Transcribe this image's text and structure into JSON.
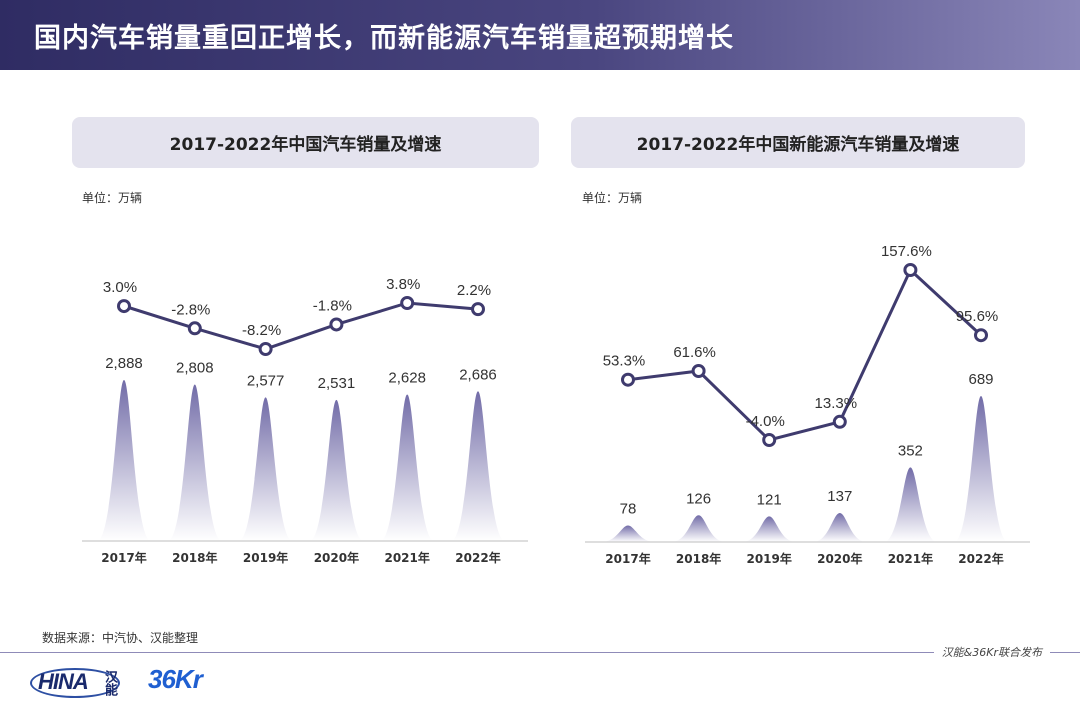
{
  "header": {
    "title": "国内汽车销量重回正增长，而新能源汽车销量超预期增长"
  },
  "left": {
    "panel_title": "2017-2022年中国汽车销量及增速",
    "unit": "单位：万辆"
  },
  "right": {
    "panel_title": "2017-2022年中国新能源汽车销量及增速",
    "unit": "单位：万辆"
  },
  "footer": {
    "source": "数据来源：中汽协、汉能整理",
    "publisher": "汉能&36Kr联合发布",
    "logo_left": "HINA",
    "logo_left_cn": "汉能",
    "logo_right": "36Kr"
  },
  "colors": {
    "line": "#3f3b6e",
    "peak_top": "#6a64a3",
    "peak_bottom": "#ffffff",
    "header": "#2f2c63"
  },
  "chart_data": [
    {
      "type": "bar",
      "categories": [
        "2017年",
        "2018年",
        "2019年",
        "2020年",
        "2021年",
        "2022年"
      ],
      "series": [
        {
          "values": [
            2888,
            2808,
            2577,
            2531,
            2628,
            2686
          ],
          "labels": [
            "2,888",
            "2,808",
            "2,577",
            "2,531",
            "2,628",
            "2,686"
          ]
        },
        {
          "type": "line",
          "values": [
            3.0,
            -2.8,
            -8.2,
            -1.8,
            3.8,
            2.2
          ],
          "labels": [
            "3.0%",
            "-2.8%",
            "-8.2%",
            "-1.8%",
            "3.8%",
            "2.2%"
          ]
        }
      ]
    },
    {
      "type": "bar",
      "categories": [
        "2017年",
        "2018年",
        "2019年",
        "2020年",
        "2021年",
        "2022年"
      ],
      "series": [
        {
          "values": [
            78,
            126,
            121,
            137,
            352,
            689
          ],
          "labels": [
            "78",
            "126",
            "121",
            "137",
            "352",
            "689"
          ]
        },
        {
          "type": "line",
          "values": [
            53.3,
            61.6,
            -4.0,
            13.3,
            157.6,
            95.6
          ],
          "labels": [
            "53.3%",
            "61.6%",
            "-4.0%",
            "13.3%",
            "157.6%",
            "95.6%"
          ]
        }
      ]
    }
  ]
}
